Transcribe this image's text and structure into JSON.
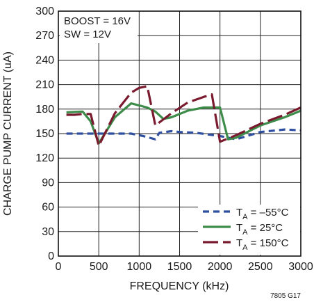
{
  "chart_data": {
    "type": "line",
    "title": "",
    "xlabel": "FREQUENCY (kHz)",
    "ylabel": "CHARGE PUMP CURRENT (uA)",
    "xlim": [
      0,
      3000
    ],
    "ylim": [
      0,
      300
    ],
    "xticks": [
      0,
      500,
      1000,
      1500,
      2000,
      2500,
      3000
    ],
    "yticks": [
      0,
      30,
      60,
      90,
      120,
      150,
      180,
      210,
      240,
      270,
      300
    ],
    "grid": true,
    "legend_position": "bottom-right",
    "annotations": [
      "BOOST = 16V",
      "SW = 12V"
    ],
    "figure_label": "7805 G17",
    "series": [
      {
        "name": "TA = –55°C",
        "label_main": "T",
        "label_sub": "A",
        "label_rest": " = –55°C",
        "color": "#2e4fa0",
        "dash": "dashed",
        "x": [
          100,
          300,
          500,
          900,
          1050,
          1200,
          1250,
          1400,
          1500,
          1700,
          2000,
          2200,
          2500,
          2800,
          3000
        ],
        "y": [
          150,
          150,
          150,
          150,
          147,
          143,
          151,
          153,
          152,
          151,
          147,
          143,
          152,
          155,
          154
        ]
      },
      {
        "name": "TA = 25°C",
        "label_main": "T",
        "label_sub": "A",
        "label_rest": " = 25°C",
        "color": "#3d8c4a",
        "dash": "solid",
        "x": [
          100,
          300,
          400,
          500,
          700,
          900,
          1100,
          1200,
          1300,
          1400,
          1600,
          1800,
          2000,
          2100,
          2200,
          2500,
          2800,
          3000
        ],
        "y": [
          176,
          177,
          165,
          138,
          170,
          187,
          182,
          177,
          168,
          170,
          178,
          182,
          182,
          143,
          145,
          160,
          170,
          178
        ]
      },
      {
        "name": "TA = 150°C",
        "label_main": "T",
        "label_sub": "A",
        "label_rest": " = 150°C",
        "color": "#7a1a2e",
        "dash": "longdash",
        "x": [
          100,
          200,
          300,
          400,
          500,
          700,
          900,
          1000,
          1100,
          1200,
          1400,
          1600,
          1800,
          1900,
          2000,
          2200,
          2500,
          2800,
          3000
        ],
        "y": [
          173,
          173,
          174,
          174,
          135,
          175,
          200,
          206,
          208,
          160,
          175,
          188,
          195,
          198,
          140,
          148,
          162,
          173,
          182
        ]
      }
    ]
  }
}
